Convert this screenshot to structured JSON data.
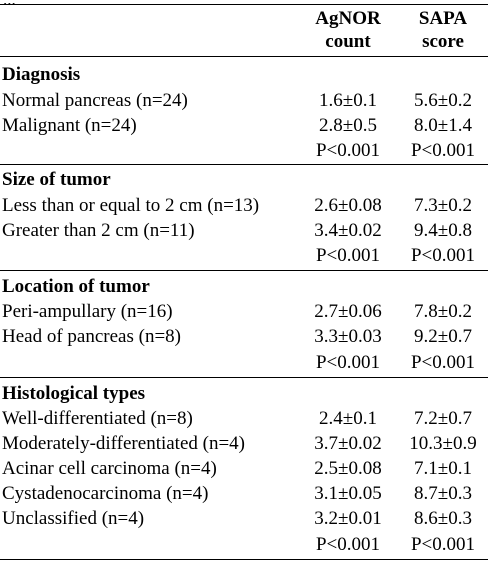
{
  "top_clip": "...",
  "headers": {
    "col1": [
      "AgNOR",
      "count"
    ],
    "col2": [
      "SAPA",
      "score"
    ]
  },
  "sections": [
    {
      "title": "Diagnosis",
      "rows": [
        {
          "label": "Normal pancreas (n=24)",
          "agnor": "1.6±0.1",
          "sapa": "5.6±0.2"
        },
        {
          "label": "Malignant (n=24)",
          "agnor": "2.8±0.5",
          "sapa": "8.0±1.4"
        }
      ],
      "p": {
        "agnor": "P<0.001",
        "sapa": "P<0.001"
      }
    },
    {
      "title": "Size of tumor",
      "rows": [
        {
          "label": "Less than or equal to 2 cm (n=13)",
          "agnor": "2.6±0.08",
          "sapa": "7.3±0.2"
        },
        {
          "label": "Greater than 2 cm (n=11)",
          "agnor": "3.4±0.02",
          "sapa": "9.4±0.8"
        }
      ],
      "p": {
        "agnor": "P<0.001",
        "sapa": "P<0.001"
      }
    },
    {
      "title": "Location of tumor",
      "rows": [
        {
          "label": "Peri-ampullary (n=16)",
          "agnor": "2.7±0.06",
          "sapa": "7.8±0.2"
        },
        {
          "label": "Head of pancreas (n=8)",
          "agnor": "3.3±0.03",
          "sapa": "9.2±0.7"
        }
      ],
      "p": {
        "agnor": "P<0.001",
        "sapa": "P<0.001"
      }
    },
    {
      "title": "Histological types",
      "rows": [
        {
          "label": "Well-differentiated (n=8)",
          "agnor": "2.4±0.1",
          "sapa": "7.2±0.7"
        },
        {
          "label": "Moderately-differentiated (n=4)",
          "agnor": "3.7±0.02",
          "sapa": "10.3±0.9"
        },
        {
          "label": "Acinar cell carcinoma (n=4)",
          "agnor": "2.5±0.08",
          "sapa": "7.1±0.1"
        },
        {
          "label": "Cystadenocarcinoma (n=4)",
          "agnor": "3.1±0.05",
          "sapa": "8.7±0.3"
        },
        {
          "label": "Unclassified (n=4)",
          "agnor": "3.2±0.01",
          "sapa": "8.6±0.3"
        }
      ],
      "p": {
        "agnor": "P<0.001",
        "sapa": "P<0.001"
      }
    }
  ]
}
